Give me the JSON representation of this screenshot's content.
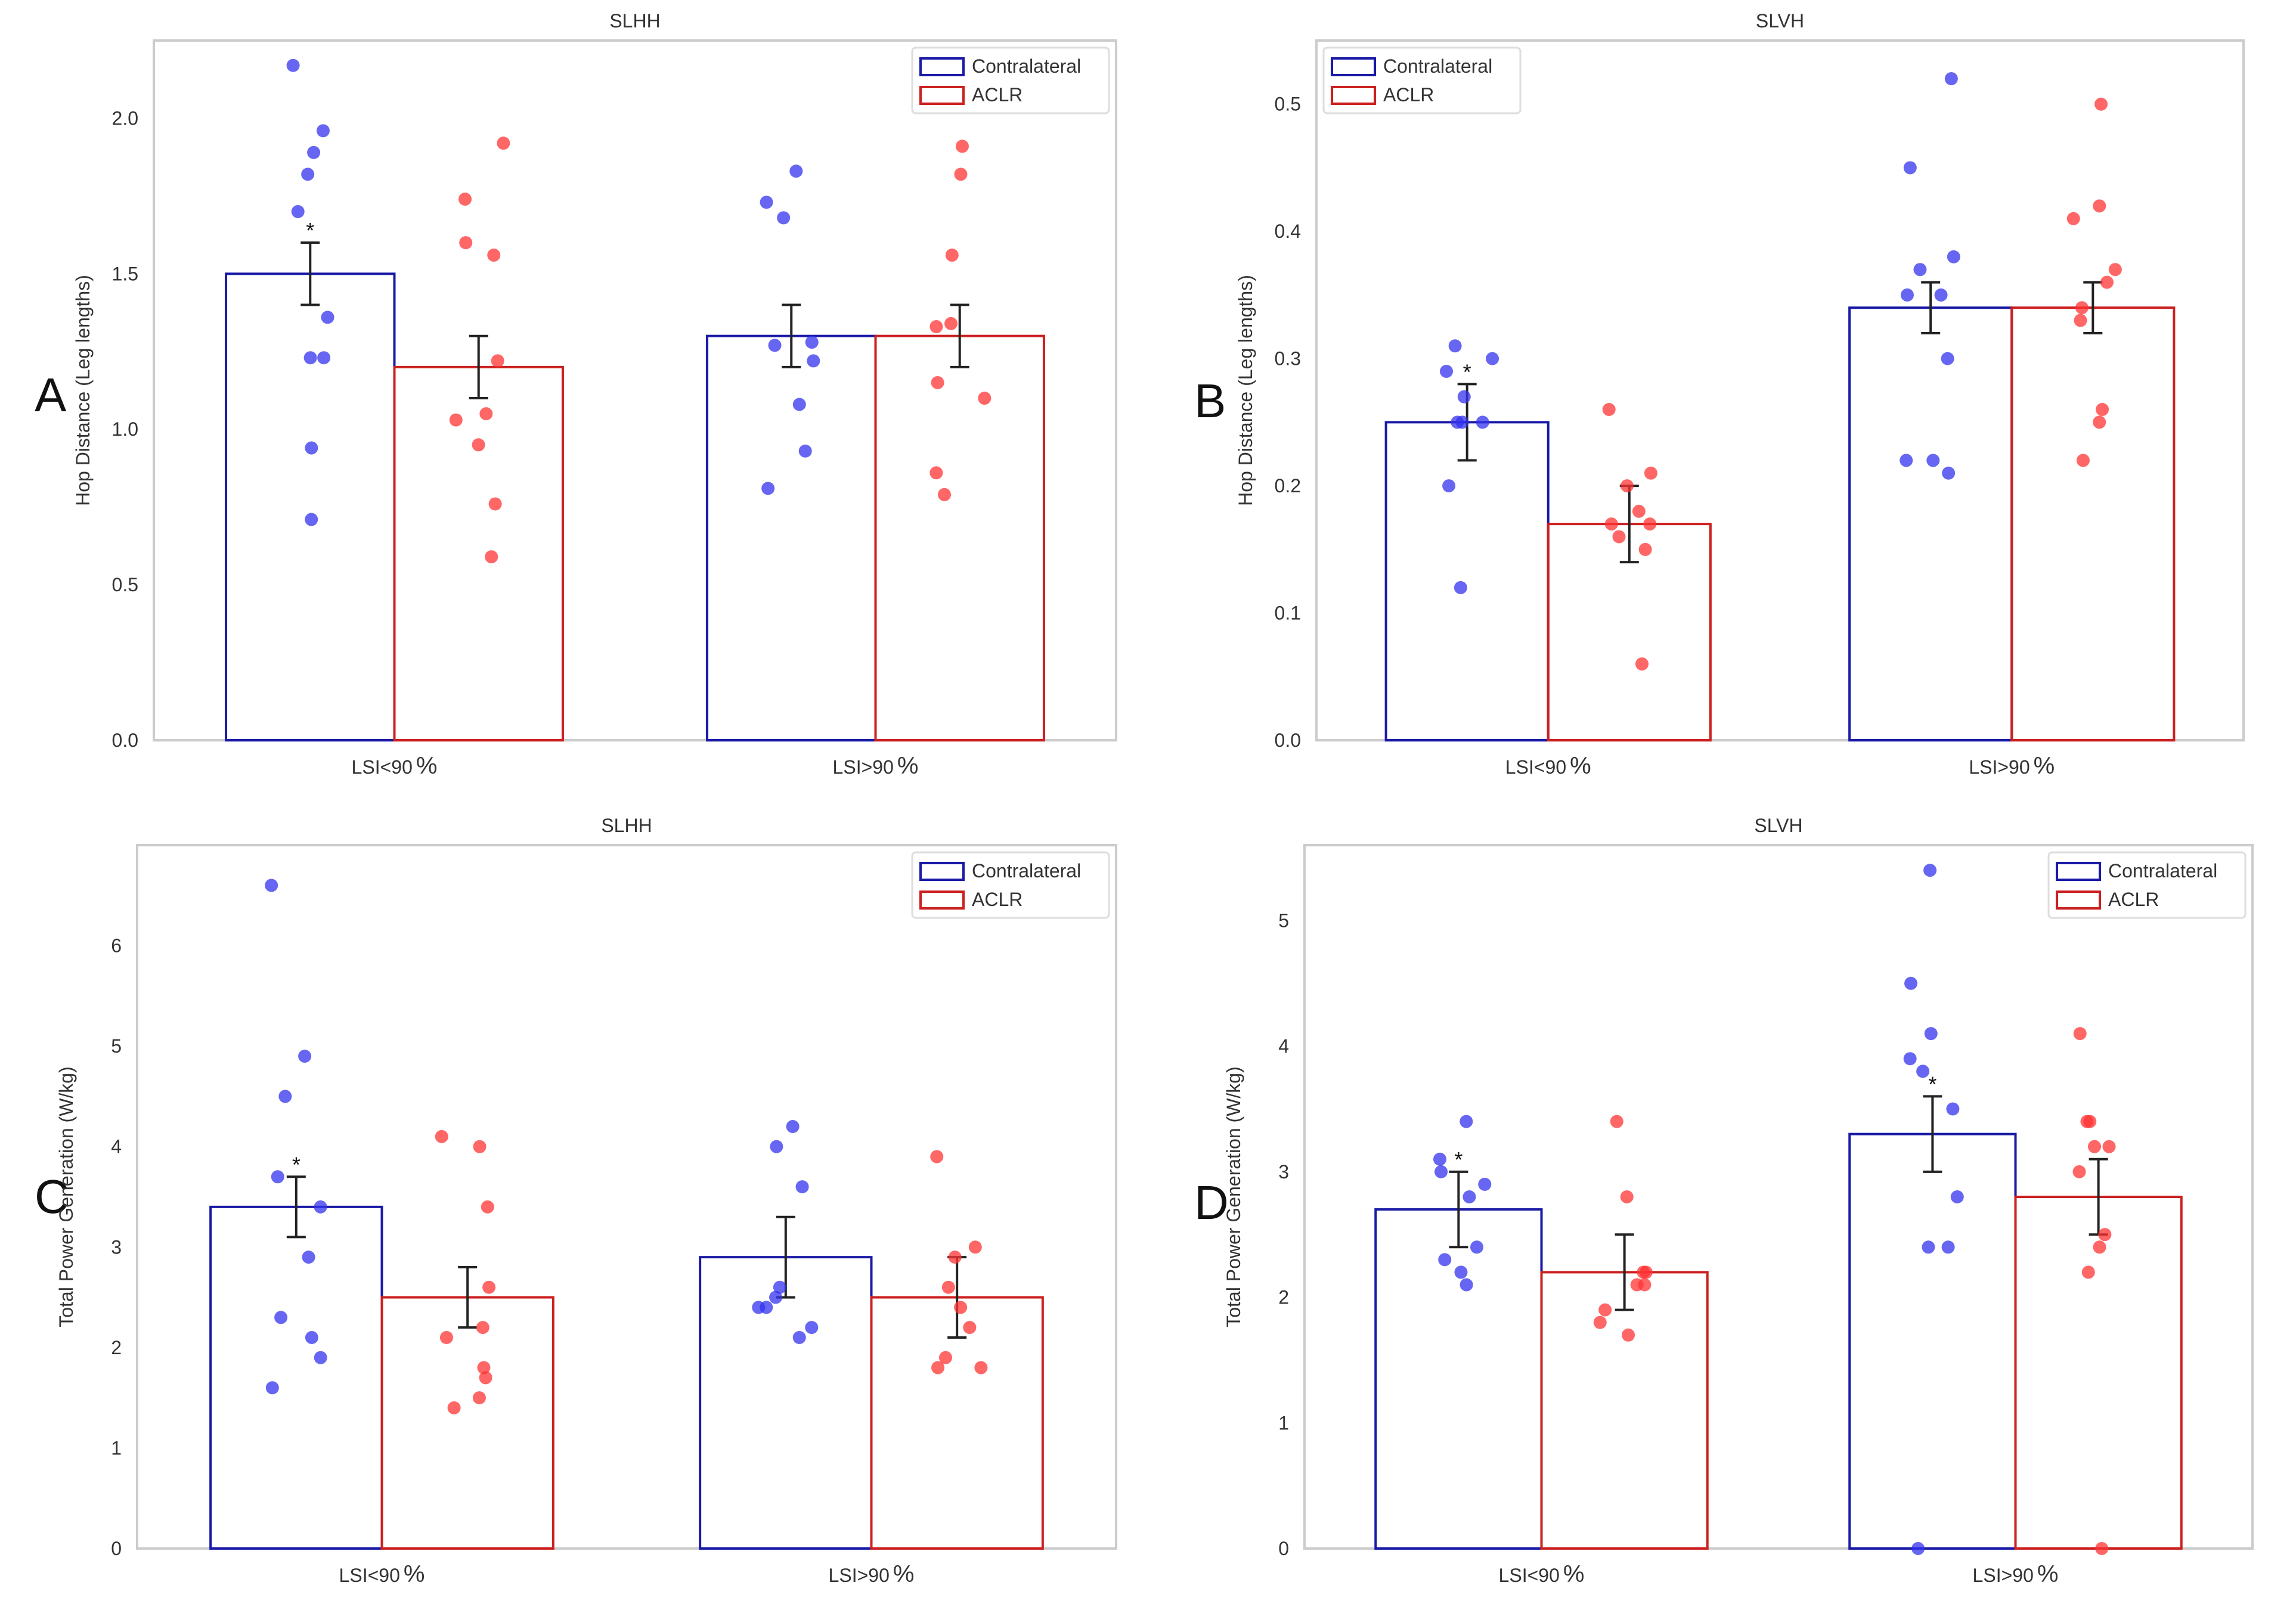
{
  "figure": {
    "colors": {
      "contralateral": "#1a1aa6",
      "aclr": "#cc2020",
      "contralateral_dot": "#3333ee",
      "aclr_dot": "#ff3333",
      "frame": "#cccccc",
      "text": "#333333",
      "error": "#222222"
    }
  },
  "chart_data": [
    {
      "panel_label": "A",
      "type": "bar",
      "title": "SLHH",
      "xlabel": "",
      "ylabel": "Hop Distance (Leg lengths)",
      "categories": [
        "LSI<90",
        "LSI>90"
      ],
      "category_suffix": "%",
      "ylim": [
        0,
        2.25
      ],
      "yticks": [
        "0.0",
        "0.5",
        "1.0",
        "1.5",
        "2.0"
      ],
      "legend_position": "top-right",
      "series": [
        {
          "name": "Contralateral",
          "values": [
            1.5,
            1.3
          ],
          "errors": [
            0.1,
            0.1
          ],
          "significance": [
            "*",
            ""
          ],
          "points": [
            [
              2.17,
              1.96,
              1.89,
              1.82,
              1.7,
              1.36,
              1.23,
              1.23,
              0.94,
              0.71
            ],
            [
              1.83,
              1.73,
              1.68,
              1.28,
              1.27,
              1.22,
              1.08,
              0.93,
              0.81
            ]
          ]
        },
        {
          "name": "ACLR",
          "values": [
            1.2,
            1.3
          ],
          "errors": [
            0.1,
            0.1
          ],
          "significance": [
            "",
            ""
          ],
          "points": [
            [
              1.92,
              1.74,
              1.6,
              1.56,
              1.22,
              1.05,
              1.03,
              0.95,
              0.76,
              0.59
            ],
            [
              1.91,
              1.82,
              1.56,
              1.34,
              1.33,
              1.15,
              1.1,
              0.86,
              0.79
            ]
          ]
        }
      ]
    },
    {
      "panel_label": "B",
      "type": "bar",
      "title": "SLVH",
      "xlabel": "",
      "ylabel": "Hop Distance (Leg lengths)",
      "categories": [
        "LSI<90",
        "LSI>90"
      ],
      "category_suffix": "%",
      "ylim": [
        0,
        0.55
      ],
      "yticks": [
        "0.0",
        "0.1",
        "0.2",
        "0.3",
        "0.4",
        "0.5"
      ],
      "legend_position": "top-left",
      "series": [
        {
          "name": "Contralateral",
          "values": [
            0.25,
            0.34
          ],
          "errors": [
            0.03,
            0.02
          ],
          "significance": [
            "*",
            ""
          ],
          "points": [
            [
              0.31,
              0.3,
              0.29,
              0.27,
              0.25,
              0.25,
              0.25,
              0.2,
              0.12
            ],
            [
              0.52,
              0.45,
              0.38,
              0.37,
              0.35,
              0.35,
              0.3,
              0.22,
              0.22,
              0.21
            ]
          ]
        },
        {
          "name": "ACLR",
          "values": [
            0.17,
            0.34
          ],
          "errors": [
            0.03,
            0.02
          ],
          "significance": [
            "",
            ""
          ],
          "points": [
            [
              0.26,
              0.21,
              0.2,
              0.18,
              0.17,
              0.17,
              0.16,
              0.15,
              0.06
            ],
            [
              0.5,
              0.42,
              0.41,
              0.37,
              0.36,
              0.34,
              0.33,
              0.26,
              0.25,
              0.22
            ]
          ]
        }
      ]
    },
    {
      "panel_label": "C",
      "type": "bar",
      "title": "SLHH",
      "xlabel": "",
      "ylabel": "Total Power Generation (W/kg)",
      "categories": [
        "LSI<90",
        "LSI>90"
      ],
      "category_suffix": "%",
      "ylim": [
        0,
        7
      ],
      "yticks": [
        "0",
        "1",
        "2",
        "3",
        "4",
        "5",
        "6"
      ],
      "legend_position": "top-right",
      "series": [
        {
          "name": "Contralateral",
          "values": [
            3.4,
            2.9
          ],
          "errors": [
            0.3,
            0.4
          ],
          "significance": [
            "*",
            ""
          ],
          "points": [
            [
              6.6,
              4.9,
              4.5,
              3.7,
              3.4,
              2.9,
              2.3,
              2.1,
              1.9,
              1.6
            ],
            [
              4.2,
              4.0,
              3.6,
              2.6,
              2.5,
              2.4,
              2.4,
              2.2,
              2.1
            ]
          ]
        },
        {
          "name": "ACLR",
          "values": [
            2.5,
            2.5
          ],
          "errors": [
            0.3,
            0.4
          ],
          "significance": [
            "",
            ""
          ],
          "points": [
            [
              4.1,
              4.0,
              3.4,
              2.6,
              2.2,
              2.1,
              1.8,
              1.7,
              1.5,
              1.4
            ],
            [
              3.9,
              3.0,
              2.9,
              2.6,
              2.4,
              2.2,
              1.9,
              1.8,
              1.8
            ]
          ]
        }
      ]
    },
    {
      "panel_label": "D",
      "type": "bar",
      "title": "SLVH",
      "xlabel": "",
      "ylabel": "Total Power Generation (W/kg)",
      "categories": [
        "LSI<90",
        "LSI>90"
      ],
      "category_suffix": "%",
      "ylim": [
        0,
        5.6
      ],
      "yticks": [
        "0",
        "1",
        "2",
        "3",
        "4",
        "5"
      ],
      "legend_position": "top-right",
      "series": [
        {
          "name": "Contralateral",
          "values": [
            2.7,
            3.3
          ],
          "errors": [
            0.3,
            0.3
          ],
          "significance": [
            "*",
            "*"
          ],
          "points": [
            [
              3.4,
              3.1,
              3.0,
              2.9,
              2.8,
              2.4,
              2.3,
              2.2,
              2.1
            ],
            [
              5.4,
              4.5,
              4.1,
              3.9,
              3.8,
              3.5,
              2.8,
              2.4,
              2.4,
              0.0
            ]
          ]
        },
        {
          "name": "ACLR",
          "values": [
            2.2,
            2.8
          ],
          "errors": [
            0.3,
            0.3
          ],
          "significance": [
            "",
            ""
          ],
          "points": [
            [
              3.4,
              2.8,
              2.2,
              2.2,
              2.1,
              2.1,
              1.9,
              1.8,
              1.7
            ],
            [
              4.1,
              3.4,
              3.4,
              3.2,
              3.2,
              3.0,
              2.5,
              2.4,
              2.2,
              0.0
            ]
          ]
        }
      ]
    }
  ]
}
